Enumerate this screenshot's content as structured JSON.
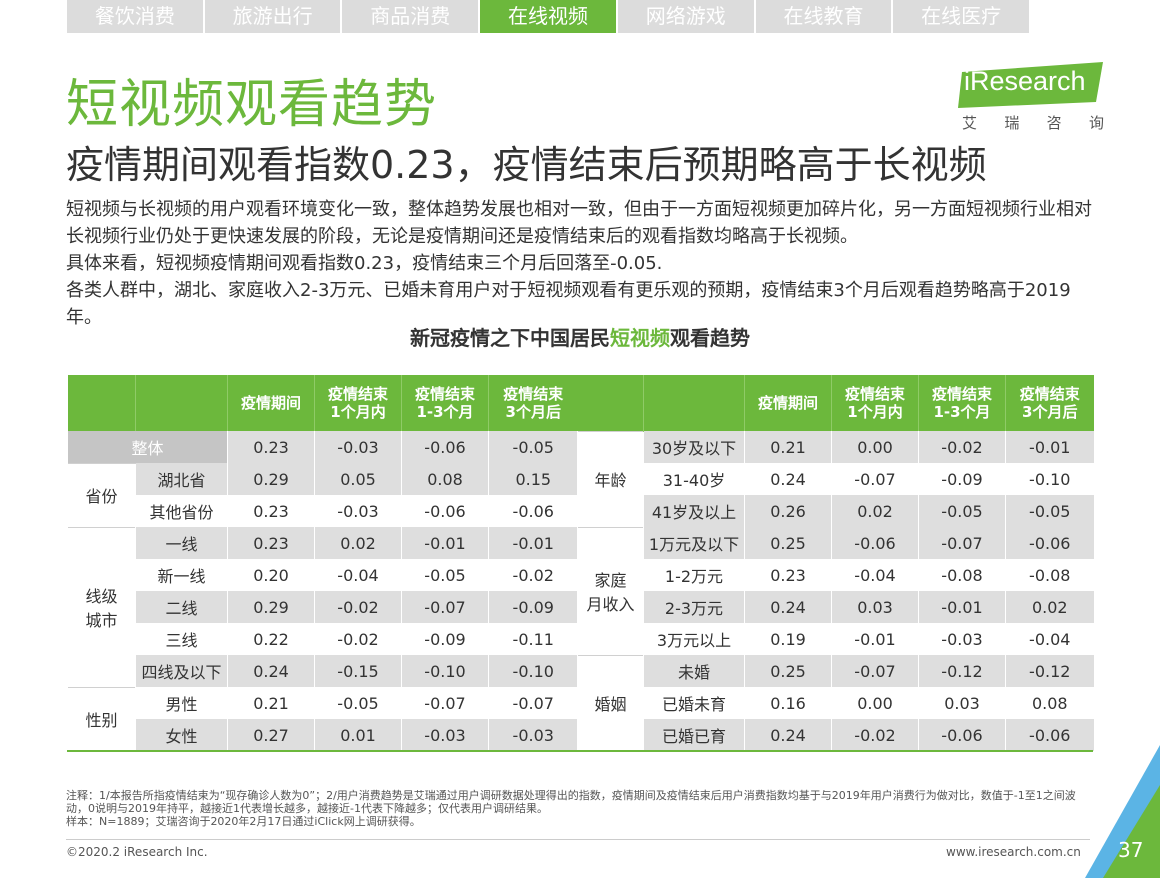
{
  "tabs": [
    "餐饮消费",
    "旅游出行",
    "商品消费",
    "在线视频",
    "网络游戏",
    "在线教育",
    "在线医疗"
  ],
  "active_tab": 3,
  "title": "短视频观看趋势",
  "subtitle": "疫情期间观看指数0.23，疫情结束后预期略高于长视频",
  "logo": {
    "brand": "iResearch",
    "cn": [
      "艾",
      "瑞",
      "咨",
      "询"
    ],
    "brand_color": "#6cb83c"
  },
  "paragraphs": [
    "短视频与长视频的用户观看环境变化一致，整体趋势发展也相对一致，但由于一方面短视频更加碎片化，另一方面短视频行业相对长视频行业仍处于更快速发展的阶段，无论是疫情期间还是疫情结束后的观看指数均略高于长视频。",
    "具体来看，短视频疫情期间观看指数0.23，疫情结束三个月后回落至-0.05.",
    "各类人群中，湖北、家庭收入2-3万元、已婚未育用户对于短视频观看有更乐观的预期，疫情结束3个月后观看趋势略高于2019年。"
  ],
  "table_title": {
    "prefix": "新冠疫情之下中国居民",
    "highlight": "短视频",
    "suffix": "观看趋势"
  },
  "headers": [
    "疫情期间",
    "疫情结束\n1个月内",
    "疫情结束\n1-3个月",
    "疫情结束\n3个月后"
  ],
  "left_table": [
    {
      "group": "",
      "label": "整体",
      "values": [
        "0.23",
        "-0.03",
        "-0.06",
        "-0.05"
      ]
    },
    {
      "group": "省份",
      "label": "湖北省",
      "values": [
        "0.29",
        "0.05",
        "0.08",
        "0.15"
      ]
    },
    {
      "group": "",
      "label": "其他省份",
      "values": [
        "0.23",
        "-0.03",
        "-0.06",
        "-0.06"
      ]
    },
    {
      "group": "线级\n城市",
      "label": "一线",
      "values": [
        "0.23",
        "0.02",
        "-0.01",
        "-0.01"
      ]
    },
    {
      "group": "",
      "label": "新一线",
      "values": [
        "0.20",
        "-0.04",
        "-0.05",
        "-0.02"
      ]
    },
    {
      "group": "",
      "label": "二线",
      "values": [
        "0.29",
        "-0.02",
        "-0.07",
        "-0.09"
      ]
    },
    {
      "group": "",
      "label": "三线",
      "values": [
        "0.22",
        "-0.02",
        "-0.09",
        "-0.11"
      ]
    },
    {
      "group": "",
      "label": "四线及以下",
      "values": [
        "0.24",
        "-0.15",
        "-0.10",
        "-0.10"
      ]
    },
    {
      "group": "性别",
      "label": "男性",
      "values": [
        "0.21",
        "-0.05",
        "-0.07",
        "-0.07"
      ]
    },
    {
      "group": "",
      "label": "女性",
      "values": [
        "0.27",
        "0.01",
        "-0.03",
        "-0.03"
      ]
    }
  ],
  "right_table": [
    {
      "group": "年龄",
      "label": "30岁及以下",
      "values": [
        "0.21",
        "0.00",
        "-0.02",
        "-0.01"
      ]
    },
    {
      "group": "",
      "label": "31-40岁",
      "values": [
        "0.24",
        "-0.07",
        "-0.09",
        "-0.10"
      ]
    },
    {
      "group": "",
      "label": "41岁及以上",
      "values": [
        "0.26",
        "0.02",
        "-0.05",
        "-0.05"
      ]
    },
    {
      "group": "家庭\n月收入",
      "label": "1万元及以下",
      "values": [
        "0.25",
        "-0.06",
        "-0.07",
        "-0.06"
      ]
    },
    {
      "group": "",
      "label": "1-2万元",
      "values": [
        "0.23",
        "-0.04",
        "-0.08",
        "-0.08"
      ]
    },
    {
      "group": "",
      "label": "2-3万元",
      "values": [
        "0.24",
        "0.03",
        "-0.01",
        "0.02"
      ]
    },
    {
      "group": "",
      "label": "3万元以上",
      "values": [
        "0.19",
        "-0.01",
        "-0.03",
        "-0.04"
      ]
    },
    {
      "group": "婚姻",
      "label": "未婚",
      "values": [
        "0.25",
        "-0.07",
        "-0.12",
        "-0.12"
      ]
    },
    {
      "group": "",
      "label": "已婚未育",
      "values": [
        "0.16",
        "0.00",
        "0.03",
        "0.08"
      ]
    },
    {
      "group": "",
      "label": "已婚已育",
      "values": [
        "0.24",
        "-0.02",
        "-0.06",
        "-0.06"
      ]
    }
  ],
  "notes": [
    "注释：1/本报告所指疫情结束为“现存确诊人数为0”；2/用户消费趋势是艾瑞通过用户调研数据处理得出的指数，疫情期间及疫情结束后用户消费指数均基于与2019年用户消费行为做对比，数值于-1至1之间波动，0说明与2019年持平，越接近1代表增长越多，越接近-1代表下降越多；仅代表用户调研结果。",
    "样本：N=1889；艾瑞咨询于2020年2月17日通过iClick网上调研获得。"
  ],
  "footer": {
    "copyright": "©2020.2 iResearch Inc.",
    "url": "www.iresearch.com.cn",
    "page": "37"
  },
  "colors": {
    "accent": "#6cb83c",
    "shade": "#dedede",
    "corner_blue": "#5bb4e5"
  }
}
